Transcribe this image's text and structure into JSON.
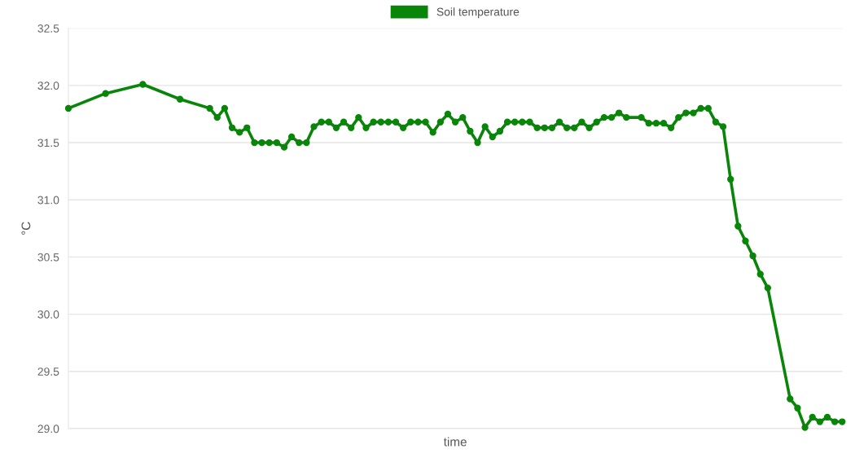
{
  "chart_data": {
    "type": "line",
    "xlabel": "time",
    "ylabel": "°C",
    "categories": [
      null,
      null,
      null,
      null,
      null,
      null,
      null,
      null,
      null,
      null,
      null,
      null,
      null,
      null,
      null,
      null,
      null,
      null,
      null,
      null,
      null,
      null,
      null,
      null,
      null,
      null,
      null,
      null,
      null,
      null,
      null,
      null,
      null,
      null,
      null,
      null,
      null,
      null,
      null,
      null,
      null,
      null,
      null,
      null,
      null,
      null,
      null,
      null,
      null,
      null,
      null,
      null,
      null,
      null,
      null,
      null,
      null,
      null,
      null,
      null,
      null,
      null,
      null,
      null,
      null,
      null,
      null,
      null,
      null,
      null,
      null,
      null,
      null,
      null,
      null,
      null,
      null,
      null,
      null,
      null,
      null,
      null,
      null,
      null,
      null,
      null,
      null,
      null,
      null,
      null,
      null,
      null,
      null,
      null,
      null,
      null,
      null,
      null,
      null,
      null,
      null,
      null,
      null,
      null,
      null
    ],
    "series": [
      {
        "name": "Soil temperature",
        "color": "#098609",
        "values": [
          31.8,
          null,
          null,
          null,
          null,
          31.93,
          null,
          null,
          null,
          null,
          32.01,
          null,
          null,
          null,
          null,
          31.88,
          null,
          null,
          null,
          31.8,
          31.72,
          31.8,
          31.63,
          31.59,
          31.63,
          31.5,
          31.5,
          31.5,
          31.5,
          31.46,
          31.55,
          31.5,
          31.5,
          31.64,
          31.68,
          31.68,
          31.63,
          31.68,
          31.63,
          31.72,
          31.63,
          31.68,
          31.68,
          31.68,
          31.68,
          31.63,
          31.68,
          31.68,
          31.68,
          31.59,
          31.68,
          31.75,
          31.68,
          31.72,
          31.6,
          31.5,
          31.64,
          31.55,
          31.6,
          31.68,
          31.68,
          31.68,
          31.68,
          31.63,
          31.63,
          31.63,
          31.68,
          31.63,
          31.63,
          31.68,
          31.63,
          31.68,
          31.72,
          31.72,
          31.76,
          31.72,
          null,
          31.72,
          31.67,
          31.67,
          31.67,
          31.63,
          31.72,
          31.76,
          31.76,
          31.8,
          31.8,
          31.68,
          31.64,
          31.18,
          30.77,
          30.64,
          30.51,
          30.35,
          30.23,
          null,
          null,
          29.26,
          29.18,
          29.01,
          29.1,
          29.06,
          29.1,
          29.06,
          29.06
        ]
      }
    ],
    "ylim": [
      29.0,
      32.5
    ],
    "yticks": [
      {
        "value": 29.0,
        "label": "29.0"
      },
      {
        "value": 29.5,
        "label": "29.5"
      },
      {
        "value": 30.0,
        "label": "30.0"
      },
      {
        "value": 30.5,
        "label": "30.5"
      },
      {
        "value": 31.0,
        "label": "31.0"
      },
      {
        "value": 31.5,
        "label": "31.5"
      },
      {
        "value": 32.0,
        "label": "32.0"
      },
      {
        "value": 32.5,
        "label": "32.5"
      }
    ],
    "grid": "y",
    "legend": "top",
    "marker": "circle",
    "line_style": "solid"
  }
}
